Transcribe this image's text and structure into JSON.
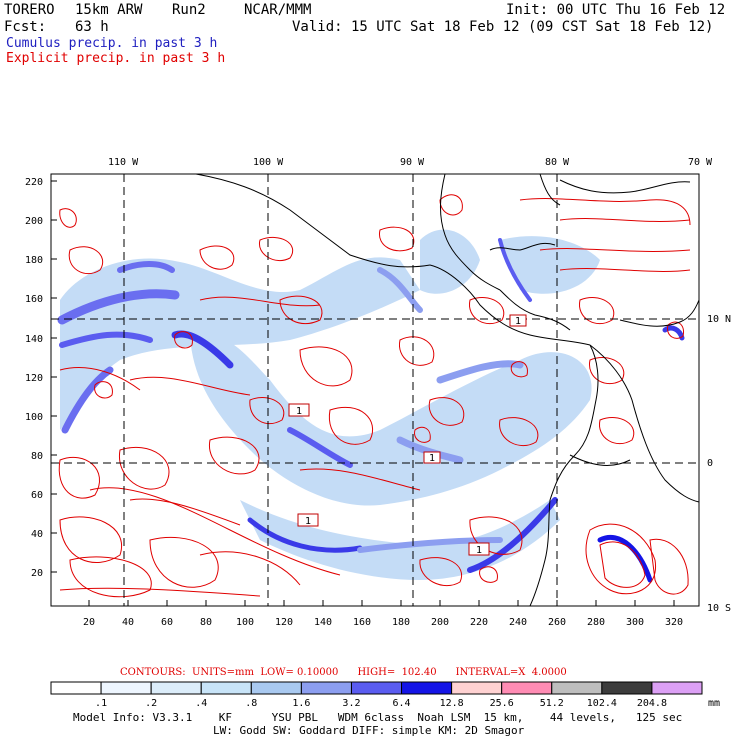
{
  "header": {
    "model": "TORERO",
    "resolution": "15km ARW",
    "run": "Run2",
    "org": "NCAR/MMM",
    "init": "Init: 00 UTC Thu 16 Feb 12",
    "fcst_label": "Fcst:",
    "fcst_value": "63 h",
    "valid": "Valid: 15 UTC Sat 18 Feb 12 (09 CST Sat 18 Feb 12)"
  },
  "legend": {
    "cumulus": "Cumulus precip. in past 3 h",
    "explicit": "Explicit precip. in past 3 h",
    "cumulus_color": "#2020c0",
    "explicit_color": "#e00000"
  },
  "map": {
    "lon_labels": [
      "110 W",
      "100 W",
      "90 W",
      "80 W",
      "70 W"
    ],
    "lat_labels": [
      "10 N",
      "0",
      "10 S"
    ],
    "y_ticks": [
      "220",
      "200",
      "180",
      "160",
      "140",
      "120",
      "100",
      "80",
      "60",
      "40",
      "20"
    ],
    "x_ticks": [
      "20",
      "40",
      "60",
      "80",
      "100",
      "120",
      "140",
      "160",
      "180",
      "200",
      "220",
      "240",
      "260",
      "280",
      "300",
      "320"
    ],
    "box_labels": [
      "1",
      "1",
      "1",
      "1",
      "1"
    ]
  },
  "contours": {
    "text": "CONTOURS:  UNITS=mm  LOW= 0.10000      HIGH=  102.40      INTERVAL=X  4.0000"
  },
  "colorbar": {
    "labels": [
      ".1",
      ".2",
      ".4",
      ".8",
      "1.6",
      "3.2",
      "6.4",
      "12.8",
      "25.6",
      "51.2",
      "102.4",
      "204.8"
    ],
    "unit": "mm",
    "colors": [
      "#ffffff",
      "#eef6ff",
      "#dcedfa",
      "#c8e4f8",
      "#a9c9f0",
      "#8c9ef0",
      "#5a5cf0",
      "#1414e6",
      "#ffd2d2",
      "#ff8cb4",
      "#bebebe",
      "#3c3c3c",
      "#dca0f5"
    ]
  },
  "model_info": {
    "line1": "Model Info: V3.3.1    KF      YSU PBL   WDM 6class  Noah LSM  15 km,    44 levels,   125 sec",
    "line2": "LW: Godd SW: Goddard DIFF: simple KM: 2D Smagor"
  }
}
